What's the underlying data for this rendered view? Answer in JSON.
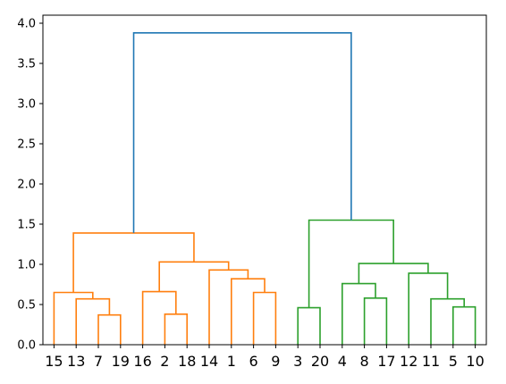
{
  "chart_data": {
    "type": "dendrogram",
    "title": "",
    "xlabel": "",
    "ylabel": "",
    "ylim": [
      0,
      4.1
    ],
    "yticks": [
      "0.0",
      "0.5",
      "1.0",
      "1.5",
      "2.0",
      "2.5",
      "3.0",
      "3.5",
      "4.0"
    ],
    "grid": false,
    "leaves": [
      "15",
      "13",
      "7",
      "19",
      "16",
      "2",
      "18",
      "14",
      "1",
      "6",
      "9",
      "3",
      "20",
      "4",
      "8",
      "17",
      "12",
      "11",
      "5",
      "10"
    ],
    "cluster_colors": {
      "above_threshold": "#1f77b4",
      "cluster_1": "#ff7f0e",
      "cluster_2": "#2ca02c"
    },
    "links": [
      {
        "left": 2,
        "right": 3,
        "height": 0.37,
        "color": "#ff7f0e"
      },
      {
        "left": 1,
        "right": "link0",
        "height": 0.57,
        "color": "#ff7f0e"
      },
      {
        "left": 0,
        "right": "link1",
        "height": 0.65,
        "color": "#ff7f0e"
      },
      {
        "left": 5,
        "right": 6,
        "height": 0.38,
        "color": "#ff7f0e"
      },
      {
        "left": 4,
        "right": "link3",
        "height": 0.66,
        "color": "#ff7f0e"
      },
      {
        "left": 9,
        "right": 10,
        "height": 0.65,
        "color": "#ff7f0e"
      },
      {
        "left": 8,
        "right": "link5",
        "height": 0.82,
        "color": "#ff7f0e"
      },
      {
        "left": 7,
        "right": "link6",
        "height": 0.93,
        "color": "#ff7f0e"
      },
      {
        "left": "link4",
        "right": "link7",
        "height": 1.03,
        "color": "#ff7f0e"
      },
      {
        "left": "link2",
        "right": "link8",
        "height": 1.39,
        "color": "#ff7f0e"
      },
      {
        "left": 11,
        "right": 12,
        "height": 0.46,
        "color": "#2ca02c"
      },
      {
        "left": 14,
        "right": 15,
        "height": 0.58,
        "color": "#2ca02c"
      },
      {
        "left": 13,
        "right": "link11",
        "height": 0.76,
        "color": "#2ca02c"
      },
      {
        "left": 18,
        "right": 19,
        "height": 0.47,
        "color": "#2ca02c"
      },
      {
        "left": 17,
        "right": "link13",
        "height": 0.57,
        "color": "#2ca02c"
      },
      {
        "left": 16,
        "right": "link14",
        "height": 0.89,
        "color": "#2ca02c"
      },
      {
        "left": "link12",
        "right": "link15",
        "height": 1.01,
        "color": "#2ca02c"
      },
      {
        "left": "link10",
        "right": "link16",
        "height": 1.55,
        "color": "#2ca02c"
      },
      {
        "left": "link9",
        "right": "link17",
        "height": 3.88,
        "color": "#1f77b4"
      }
    ]
  }
}
